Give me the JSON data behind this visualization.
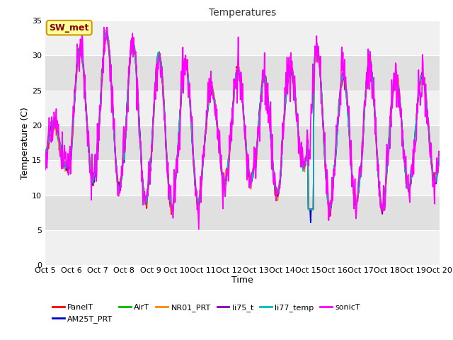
{
  "title": "Temperatures",
  "xlabel": "Time",
  "ylabel": "Temperature (C)",
  "annotation": "SW_met",
  "ylim": [
    0,
    35
  ],
  "yticks": [
    0,
    5,
    10,
    15,
    20,
    25,
    30,
    35
  ],
  "x_labels": [
    "Oct 5",
    "Oct 6",
    "Oct 7",
    "Oct 8",
    "Oct 9",
    "Oct 10",
    "Oct 11",
    "Oct 12",
    "Oct 13",
    "Oct 14",
    "Oct 15",
    "Oct 16",
    "Oct 17",
    "Oct 18",
    "Oct 19",
    "Oct 20"
  ],
  "series_order": [
    "PanelT",
    "AM25T_PRT",
    "AirT",
    "NR01_PRT",
    "li75_t",
    "li77_temp",
    "sonicT"
  ],
  "series": {
    "PanelT": {
      "color": "#ff0000",
      "lw": 1.2
    },
    "AM25T_PRT": {
      "color": "#0000cc",
      "lw": 1.2
    },
    "AirT": {
      "color": "#00bb00",
      "lw": 1.2
    },
    "NR01_PRT": {
      "color": "#ff8800",
      "lw": 1.2
    },
    "li75_t": {
      "color": "#8800bb",
      "lw": 1.2
    },
    "li77_temp": {
      "color": "#00bbbb",
      "lw": 1.2
    },
    "sonicT": {
      "color": "#ff00ff",
      "lw": 1.2
    }
  },
  "bg_dark": "#e0e0e0",
  "bg_light": "#f0f0f0",
  "band_edges": [
    0,
    5,
    10,
    15,
    20,
    25,
    30,
    35
  ],
  "grid_color": "#ffffff",
  "annotation_bg": "#ffff99",
  "annotation_border": "#cc9900",
  "day_peaks": [
    20,
    31,
    33,
    32,
    30,
    29,
    25,
    28,
    27,
    28,
    31,
    27,
    29,
    27,
    27
  ],
  "day_troughs": [
    14,
    12,
    11,
    9,
    8,
    9,
    12,
    12,
    10,
    14,
    8,
    9,
    8,
    11,
    12
  ],
  "figsize": [
    6.4,
    4.8
  ],
  "dpi": 100
}
